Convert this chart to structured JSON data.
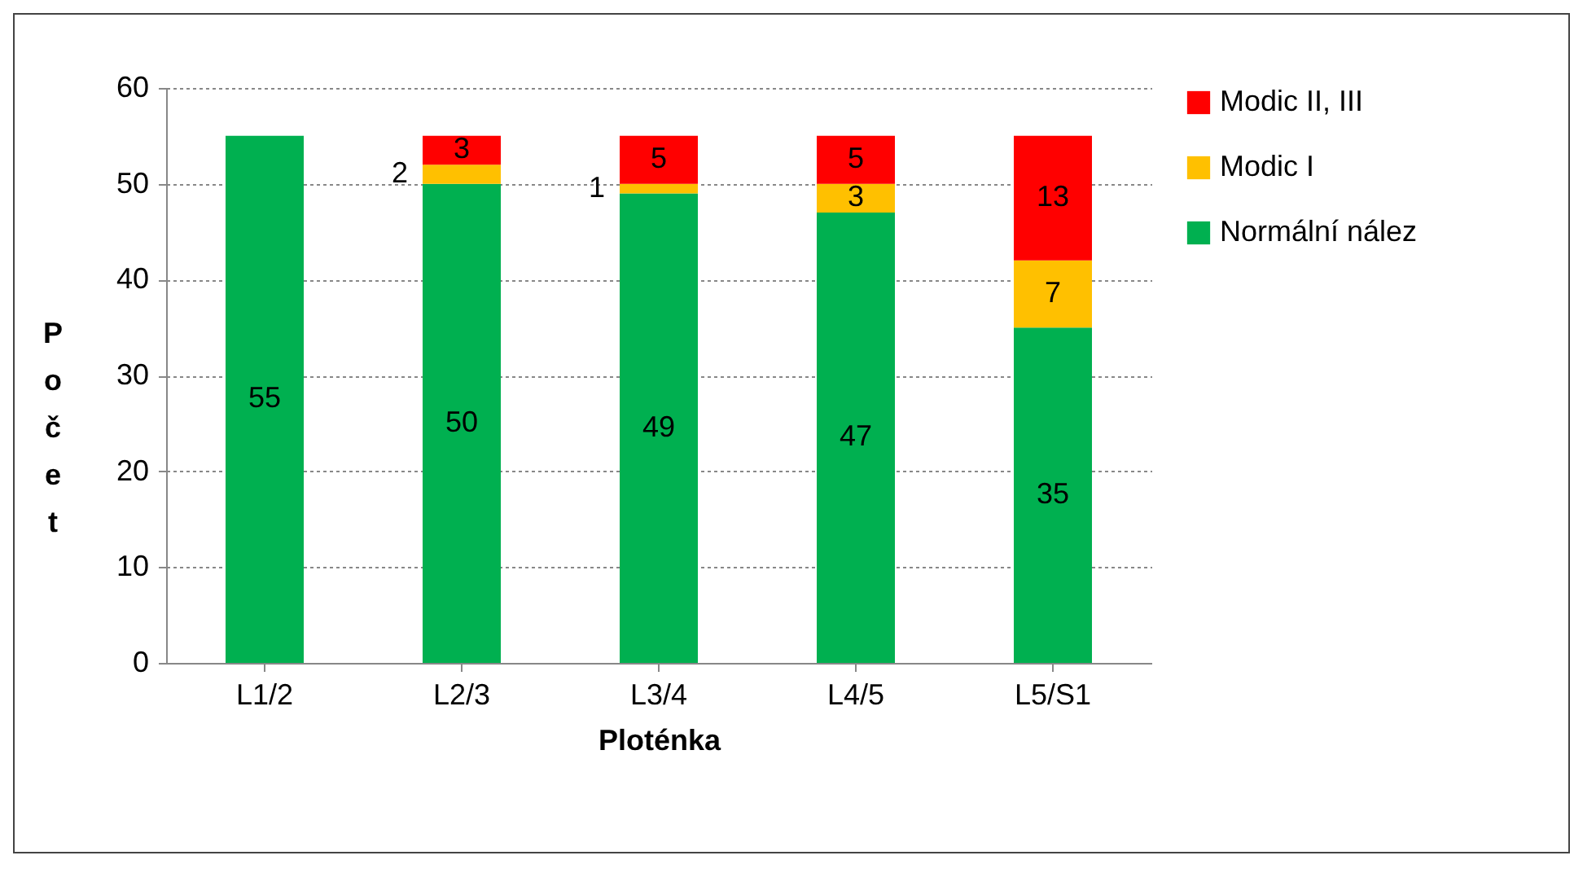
{
  "chart_data": {
    "type": "bar",
    "stacked": true,
    "xlabel": "Ploténka",
    "ylabel": "Počet",
    "categories": [
      "L1/2",
      "L2/3",
      "L3/4",
      "L4/5",
      "L5/S1"
    ],
    "series": [
      {
        "name": "Normální nález",
        "color": "#00b050",
        "values": [
          55,
          50,
          49,
          47,
          35
        ]
      },
      {
        "name": "Modic I",
        "color": "#ffc000",
        "values": [
          null,
          2,
          1,
          3,
          7
        ]
      },
      {
        "name": "Modic II, III",
        "color": "#ff0000",
        "values": [
          null,
          3,
          5,
          5,
          13
        ]
      }
    ],
    "ylim": [
      0,
      60
    ],
    "yticks": [
      0,
      10,
      20,
      30,
      40,
      50,
      60
    ],
    "grid": "y",
    "legend": "right",
    "data_labels": true
  }
}
